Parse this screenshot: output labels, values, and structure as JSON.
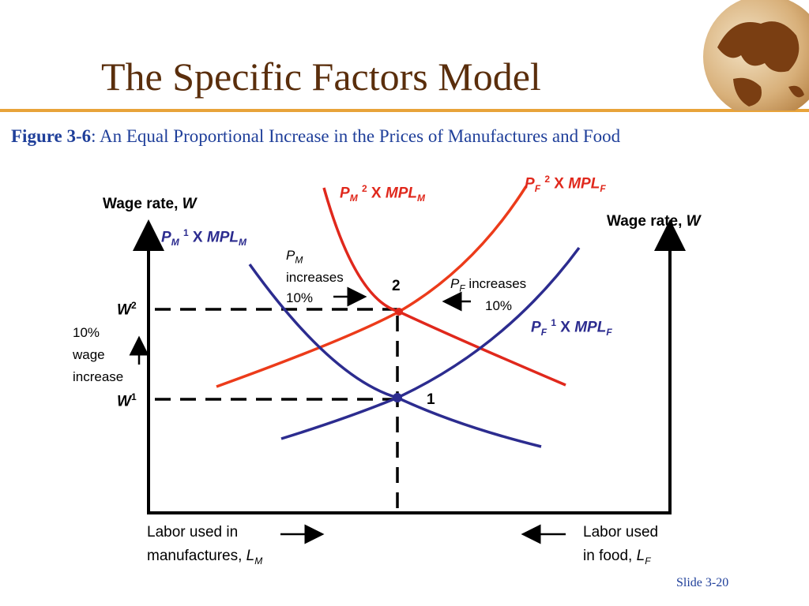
{
  "header": {
    "title": "The Specific Factors Model",
    "figure_label": "Figure 3-6",
    "figure_caption": ": An Equal Proportional Increase in the Prices of Manufactures and Food"
  },
  "diagram": {
    "left_axis_label": "Wage rate, ",
    "left_axis_var": "W",
    "right_axis_label": "Wage rate, ",
    "right_axis_var": "W",
    "w2": "W",
    "w2_sup": "2",
    "w1": "W",
    "w1_sup": "1",
    "wage_note_1": "10%",
    "wage_note_2": "wage",
    "wage_note_3": "increase",
    "point_1": "1",
    "point_2": "2",
    "pm_note_p": "P",
    "pm_note_sub": "M",
    "pm_note_2": "increases",
    "pm_note_3": "10%",
    "pf_note_p": "P",
    "pf_note_sub": "F",
    "pf_note_2": " increases",
    "pf_note_3": "10%",
    "bottom_left_1": "Labor used in",
    "bottom_left_2": "manufactures, ",
    "bottom_left_var": "L",
    "bottom_left_sub": "M",
    "bottom_right_1": "Labor used",
    "bottom_right_2": "in food, ",
    "bottom_right_var": "L",
    "bottom_right_sub": "F",
    "curves": {
      "pm1": {
        "p": "P",
        "sub": "M",
        "sup": "1",
        "x": " X ",
        "mpl": "MPL",
        "mpl_sub": "M"
      },
      "pm2": {
        "p": "P",
        "sub": "M",
        "sup": "2",
        "x": " X ",
        "mpl": "MPL",
        "mpl_sub": "M"
      },
      "pf1": {
        "p": "P",
        "sub": "F",
        "sup": "1",
        "x": " X ",
        "mpl": "MPL",
        "mpl_sub": "F"
      },
      "pf2": {
        "p": "P",
        "sub": "F",
        "sup": "2",
        "x": " X ",
        "mpl": "MPL",
        "mpl_sub": "F"
      }
    },
    "colors": {
      "red_curve": "#e0281c",
      "orange_red_curve": "#ec3b1a",
      "navy_curve": "#2c2c8f",
      "axis": "#000000"
    }
  },
  "footer": {
    "slide_number": "Slide 3-20"
  }
}
